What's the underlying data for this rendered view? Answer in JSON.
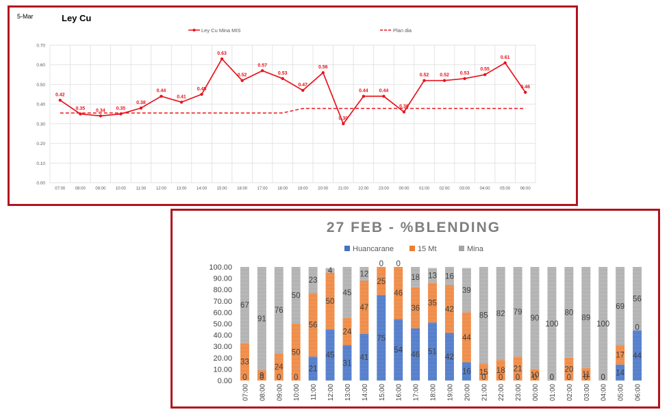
{
  "line_panel": {
    "date_label": "5-Mar",
    "title": "Ley Cu"
  },
  "bar_panel": {
    "title": "27 FEB - %BLENDING"
  },
  "chart_data": [
    {
      "type": "line",
      "title": "Ley Cu",
      "categories": [
        "07:00",
        "08:00",
        "09:00",
        "10:00",
        "11:00",
        "12:00",
        "13:00",
        "14:00",
        "15:00",
        "16:00",
        "17:00",
        "18:00",
        "19:00",
        "20:00",
        "21:00",
        "22:00",
        "23:00",
        "00:00",
        "01:00",
        "02:00",
        "03:00",
        "04:00",
        "05:00",
        "06:00"
      ],
      "series": [
        {
          "name": "Ley Cu Mina MIS",
          "style": "solid-markers",
          "color": "#e8141c",
          "values": [
            0.42,
            0.35,
            0.34,
            0.35,
            0.38,
            0.44,
            0.41,
            0.45,
            0.63,
            0.52,
            0.57,
            0.53,
            0.47,
            0.56,
            0.3,
            0.44,
            0.44,
            0.36,
            0.52,
            0.52,
            0.53,
            0.55,
            0.61,
            0.46
          ],
          "labels": [
            "0.42",
            "0.35",
            "0.34",
            "0.35",
            "0.38",
            "0.44",
            "0.41",
            "0.45",
            "0.63",
            "0.52",
            "0.57",
            "0.53",
            "0.47",
            "0.56",
            "0.30",
            "0.44",
            "0.44",
            "0.36",
            "0.52",
            "0.52",
            "0.53",
            "0.55",
            "0.61",
            "0.46"
          ]
        },
        {
          "name": "Plan dia",
          "style": "dashed",
          "color": "#e8141c",
          "values": [
            0.355,
            0.355,
            0.355,
            0.355,
            0.355,
            0.355,
            0.355,
            0.355,
            0.355,
            0.355,
            0.355,
            0.355,
            0.378,
            0.378,
            0.378,
            0.378,
            0.378,
            0.378,
            0.378,
            0.378,
            0.378,
            0.378,
            0.378,
            0.378
          ]
        }
      ],
      "ylim": [
        0,
        0.7
      ],
      "yticks": [
        "0.00",
        "0.10",
        "0.20",
        "0.30",
        "0.40",
        "0.50",
        "0.60",
        "0.70"
      ],
      "grid": true,
      "legend": "top"
    },
    {
      "type": "bar",
      "stacked": true,
      "title": "27 FEB - %BLENDING",
      "categories": [
        "07:00",
        "08:00",
        "09:00",
        "10:00",
        "11:00",
        "12:00",
        "13:00",
        "14:00",
        "15:00",
        "16:00",
        "17:00",
        "18:00",
        "19:00",
        "20:00",
        "21:00",
        "22:00",
        "23:00",
        "00:00",
        "01:00",
        "02:00",
        "03:00",
        "04:00",
        "05:00",
        "06:00"
      ],
      "series": [
        {
          "name": "Huancarane",
          "color": "#4472c4",
          "values": [
            0,
            0,
            0,
            0,
            21,
            45,
            31,
            41,
            75,
            54,
            46,
            51,
            42,
            16,
            0,
            0,
            0,
            0,
            0,
            0,
            0,
            0,
            14,
            44
          ]
        },
        {
          "name": "15 Mt",
          "color": "#ed7d31",
          "values": [
            33,
            9,
            24,
            50,
            56,
            50,
            24,
            47,
            25,
            46,
            36,
            35,
            42,
            44,
            15,
            18,
            21,
            10,
            0,
            20,
            11,
            0,
            17,
            0
          ]
        },
        {
          "name": "Mina",
          "color": "#a5a5a5",
          "values": [
            67,
            91,
            76,
            50,
            23,
            4,
            45,
            12,
            0,
            0,
            18,
            13,
            16,
            39,
            85,
            82,
            79,
            90,
            100,
            80,
            89,
            100,
            69,
            56
          ]
        }
      ],
      "ylim": [
        0,
        100
      ],
      "yticks": [
        "0.00",
        "10.00",
        "20.00",
        "30.00",
        "40.00",
        "50.00",
        "60.00",
        "70.00",
        "80.00",
        "90.00",
        "100.00"
      ],
      "legend": "top"
    }
  ]
}
